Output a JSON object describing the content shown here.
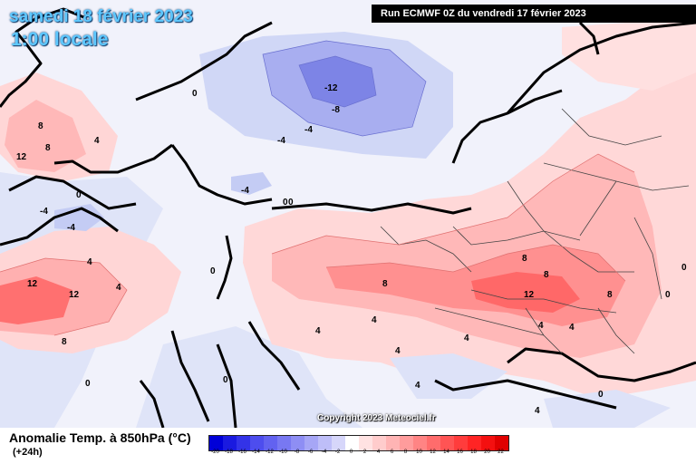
{
  "header": {
    "date": "samedi 18 février 2023",
    "time": "1:00 locale",
    "run": "Run ECMWF 0Z du vendredi 17 février 2023"
  },
  "footer": {
    "parameter": "Anomalie Temp. à 850hPa (°C)",
    "lead": "(+24h)",
    "copyright": "Copyright 2023 Meteociel.fr"
  },
  "scale": {
    "values": [
      "-20",
      "-18",
      "-16",
      "-14",
      "-12",
      "-10",
      "-8",
      "-6",
      "-4",
      "-2",
      "0",
      "2",
      "4",
      "6",
      "8",
      "10",
      "12",
      "14",
      "16",
      "18",
      "20",
      "22"
    ],
    "colors": [
      "#0000d8",
      "#1a1ae0",
      "#3333e8",
      "#4d4dee",
      "#6262f0",
      "#7878f2",
      "#8e8ef4",
      "#a6a6f6",
      "#bebef8",
      "#d6d6fa",
      "#ffffff",
      "#ffe2e2",
      "#ffcccc",
      "#ffb4b4",
      "#ff9c9c",
      "#ff8484",
      "#ff6c6c",
      "#ff5454",
      "#ff3c3c",
      "#ff2424",
      "#f41010",
      "#e00000"
    ]
  },
  "map_labels": [
    {
      "text": "-12"
    },
    {
      "text": "-8"
    },
    {
      "text": "-4"
    },
    {
      "text": "-4"
    },
    {
      "text": "-4"
    },
    {
      "text": "-4"
    },
    {
      "text": "-4"
    },
    {
      "text": "0"
    },
    {
      "text": "0"
    },
    {
      "text": "0"
    },
    {
      "text": "0"
    },
    {
      "text": "0"
    },
    {
      "text": "0"
    },
    {
      "text": "0"
    },
    {
      "text": "0"
    },
    {
      "text": "8"
    },
    {
      "text": "8"
    },
    {
      "text": "12"
    },
    {
      "text": "4"
    },
    {
      "text": "4"
    },
    {
      "text": "12"
    },
    {
      "text": "12"
    },
    {
      "text": "8"
    },
    {
      "text": "4"
    },
    {
      "text": "8"
    },
    {
      "text": "4"
    },
    {
      "text": "4"
    },
    {
      "text": "4"
    },
    {
      "text": "4"
    },
    {
      "text": "8"
    },
    {
      "text": "8"
    },
    {
      "text": "12"
    },
    {
      "text": "8"
    },
    {
      "text": "0"
    },
    {
      "text": "4"
    },
    {
      "text": "4"
    },
    {
      "text": "4"
    },
    {
      "text": "4"
    },
    {
      "text": "0"
    }
  ],
  "colors": {
    "title": "#5ec8ff",
    "banner_bg": "#000000",
    "warm_light": "#ffd8d8",
    "warm_mid": "#ffb0b0",
    "warm_strong": "#ff6060",
    "cold_light": "#ccd6f6",
    "cold_mid": "#9ea6ee",
    "cold_strong": "#7a80e6"
  }
}
